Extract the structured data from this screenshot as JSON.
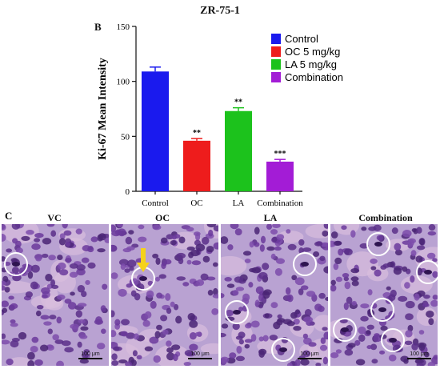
{
  "figure_title": "ZR-75-1",
  "panel_labels": {
    "b": "B",
    "c": "C"
  },
  "chart_data": {
    "type": "bar",
    "categories": [
      "Control",
      "OC",
      "LA",
      "Combination"
    ],
    "values": [
      109,
      46,
      73,
      27
    ],
    "errors": [
      4,
      2,
      3,
      2
    ],
    "significance": [
      "",
      "**",
      "**",
      "***"
    ],
    "colors": [
      "#1a1aee",
      "#ee1c1c",
      "#1cc21c",
      "#a31cd6"
    ],
    "ylabel": "Ki-67 Mean Intensity",
    "ylim": [
      0,
      150
    ],
    "yticks": [
      0,
      50,
      100,
      150
    ],
    "legend": {
      "placement": "right",
      "entries": [
        "Control",
        "OC 5 mg/kg",
        "LA 5 mg/kg",
        "Combination"
      ]
    }
  },
  "histology": {
    "panels": [
      {
        "label": "VC",
        "scale": "100 μm",
        "circles": 1
      },
      {
        "label": "OC",
        "scale": "100 μm",
        "circles": 1,
        "arrow": true
      },
      {
        "label": "LA",
        "scale": "100 μm",
        "circles": 3
      },
      {
        "label": "Combination",
        "scale": "100 μm",
        "circles": 5
      }
    ],
    "arrow_color": "#f5d21a",
    "circle_color": "#ffffff"
  }
}
